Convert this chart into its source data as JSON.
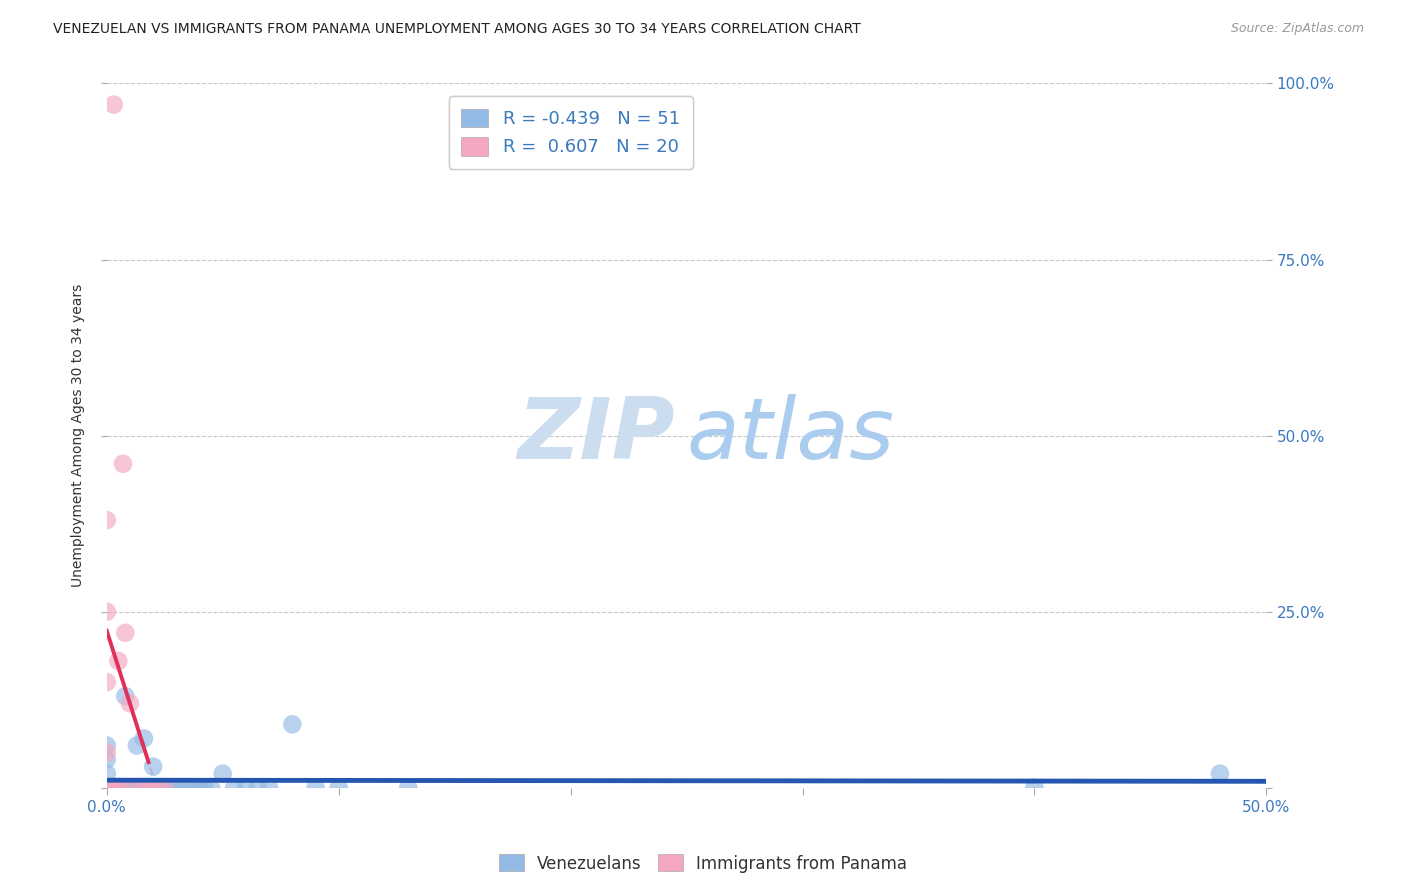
{
  "title": "VENEZUELAN VS IMMIGRANTS FROM PANAMA UNEMPLOYMENT AMONG AGES 30 TO 34 YEARS CORRELATION CHART",
  "source": "Source: ZipAtlas.com",
  "ylabel": "Unemployment Among Ages 30 to 34 years",
  "xlim": [
    0.0,
    0.5
  ],
  "ylim": [
    0.0,
    1.0
  ],
  "venezuelan_R": -0.439,
  "venezuelan_N": 51,
  "panama_R": 0.607,
  "panama_N": 20,
  "venezuelan_color": "#92bae4",
  "panama_color": "#f4a8bf",
  "venezuelan_line_color": "#2356b0",
  "panama_line_color": "#e0305a",
  "panama_dash_color": "#e0b0c0",
  "ven_dash_color": "#c8c8c8",
  "grid_color": "#c8c8c8",
  "background_color": "#ffffff",
  "tick_color": "#3a7abf",
  "label_color": "#333333",
  "source_color": "#999999",
  "watermark_zip_color": "#ccddf0",
  "watermark_atlas_color": "#aaccee",
  "venezuelan_x": [
    0.0,
    0.0,
    0.0,
    0.0,
    0.0,
    0.001,
    0.001,
    0.002,
    0.002,
    0.003,
    0.003,
    0.004,
    0.005,
    0.005,
    0.006,
    0.006,
    0.007,
    0.008,
    0.008,
    0.009,
    0.01,
    0.01,
    0.011,
    0.012,
    0.013,
    0.014,
    0.015,
    0.016,
    0.018,
    0.02,
    0.022,
    0.025,
    0.027,
    0.03,
    0.033,
    0.035,
    0.038,
    0.04,
    0.042,
    0.045,
    0.05,
    0.055,
    0.06,
    0.065,
    0.07,
    0.08,
    0.09,
    0.1,
    0.13,
    0.4,
    0.48
  ],
  "venezuelan_y": [
    0.0,
    0.0,
    0.02,
    0.04,
    0.06,
    0.0,
    0.0,
    0.0,
    0.0,
    0.0,
    0.0,
    0.0,
    0.0,
    0.0,
    0.0,
    0.0,
    0.0,
    0.0,
    0.13,
    0.0,
    0.0,
    0.0,
    0.0,
    0.0,
    0.06,
    0.0,
    0.0,
    0.07,
    0.0,
    0.03,
    0.0,
    0.0,
    0.0,
    0.0,
    0.0,
    0.0,
    0.0,
    0.0,
    0.0,
    0.0,
    0.02,
    0.0,
    0.0,
    0.0,
    0.0,
    0.09,
    0.0,
    0.0,
    0.0,
    0.0,
    0.02
  ],
  "panama_x": [
    0.0,
    0.0,
    0.0,
    0.0,
    0.001,
    0.002,
    0.003,
    0.004,
    0.004,
    0.005,
    0.006,
    0.007,
    0.008,
    0.01,
    0.012,
    0.015,
    0.018,
    0.02,
    0.022,
    0.025
  ],
  "panama_y": [
    0.05,
    0.15,
    0.25,
    0.38,
    0.0,
    0.0,
    0.97,
    0.0,
    0.0,
    0.18,
    0.0,
    0.46,
    0.22,
    0.12,
    0.0,
    0.0,
    0.0,
    0.0,
    0.0,
    0.0
  ],
  "xticks": [
    0.0,
    0.1,
    0.2,
    0.3,
    0.4,
    0.5
  ],
  "yticks_right": [
    0.0,
    0.25,
    0.5,
    0.75,
    1.0
  ],
  "ytick_labels_right": [
    "",
    "25.0%",
    "50.0%",
    "75.0%",
    "100.0%"
  ]
}
